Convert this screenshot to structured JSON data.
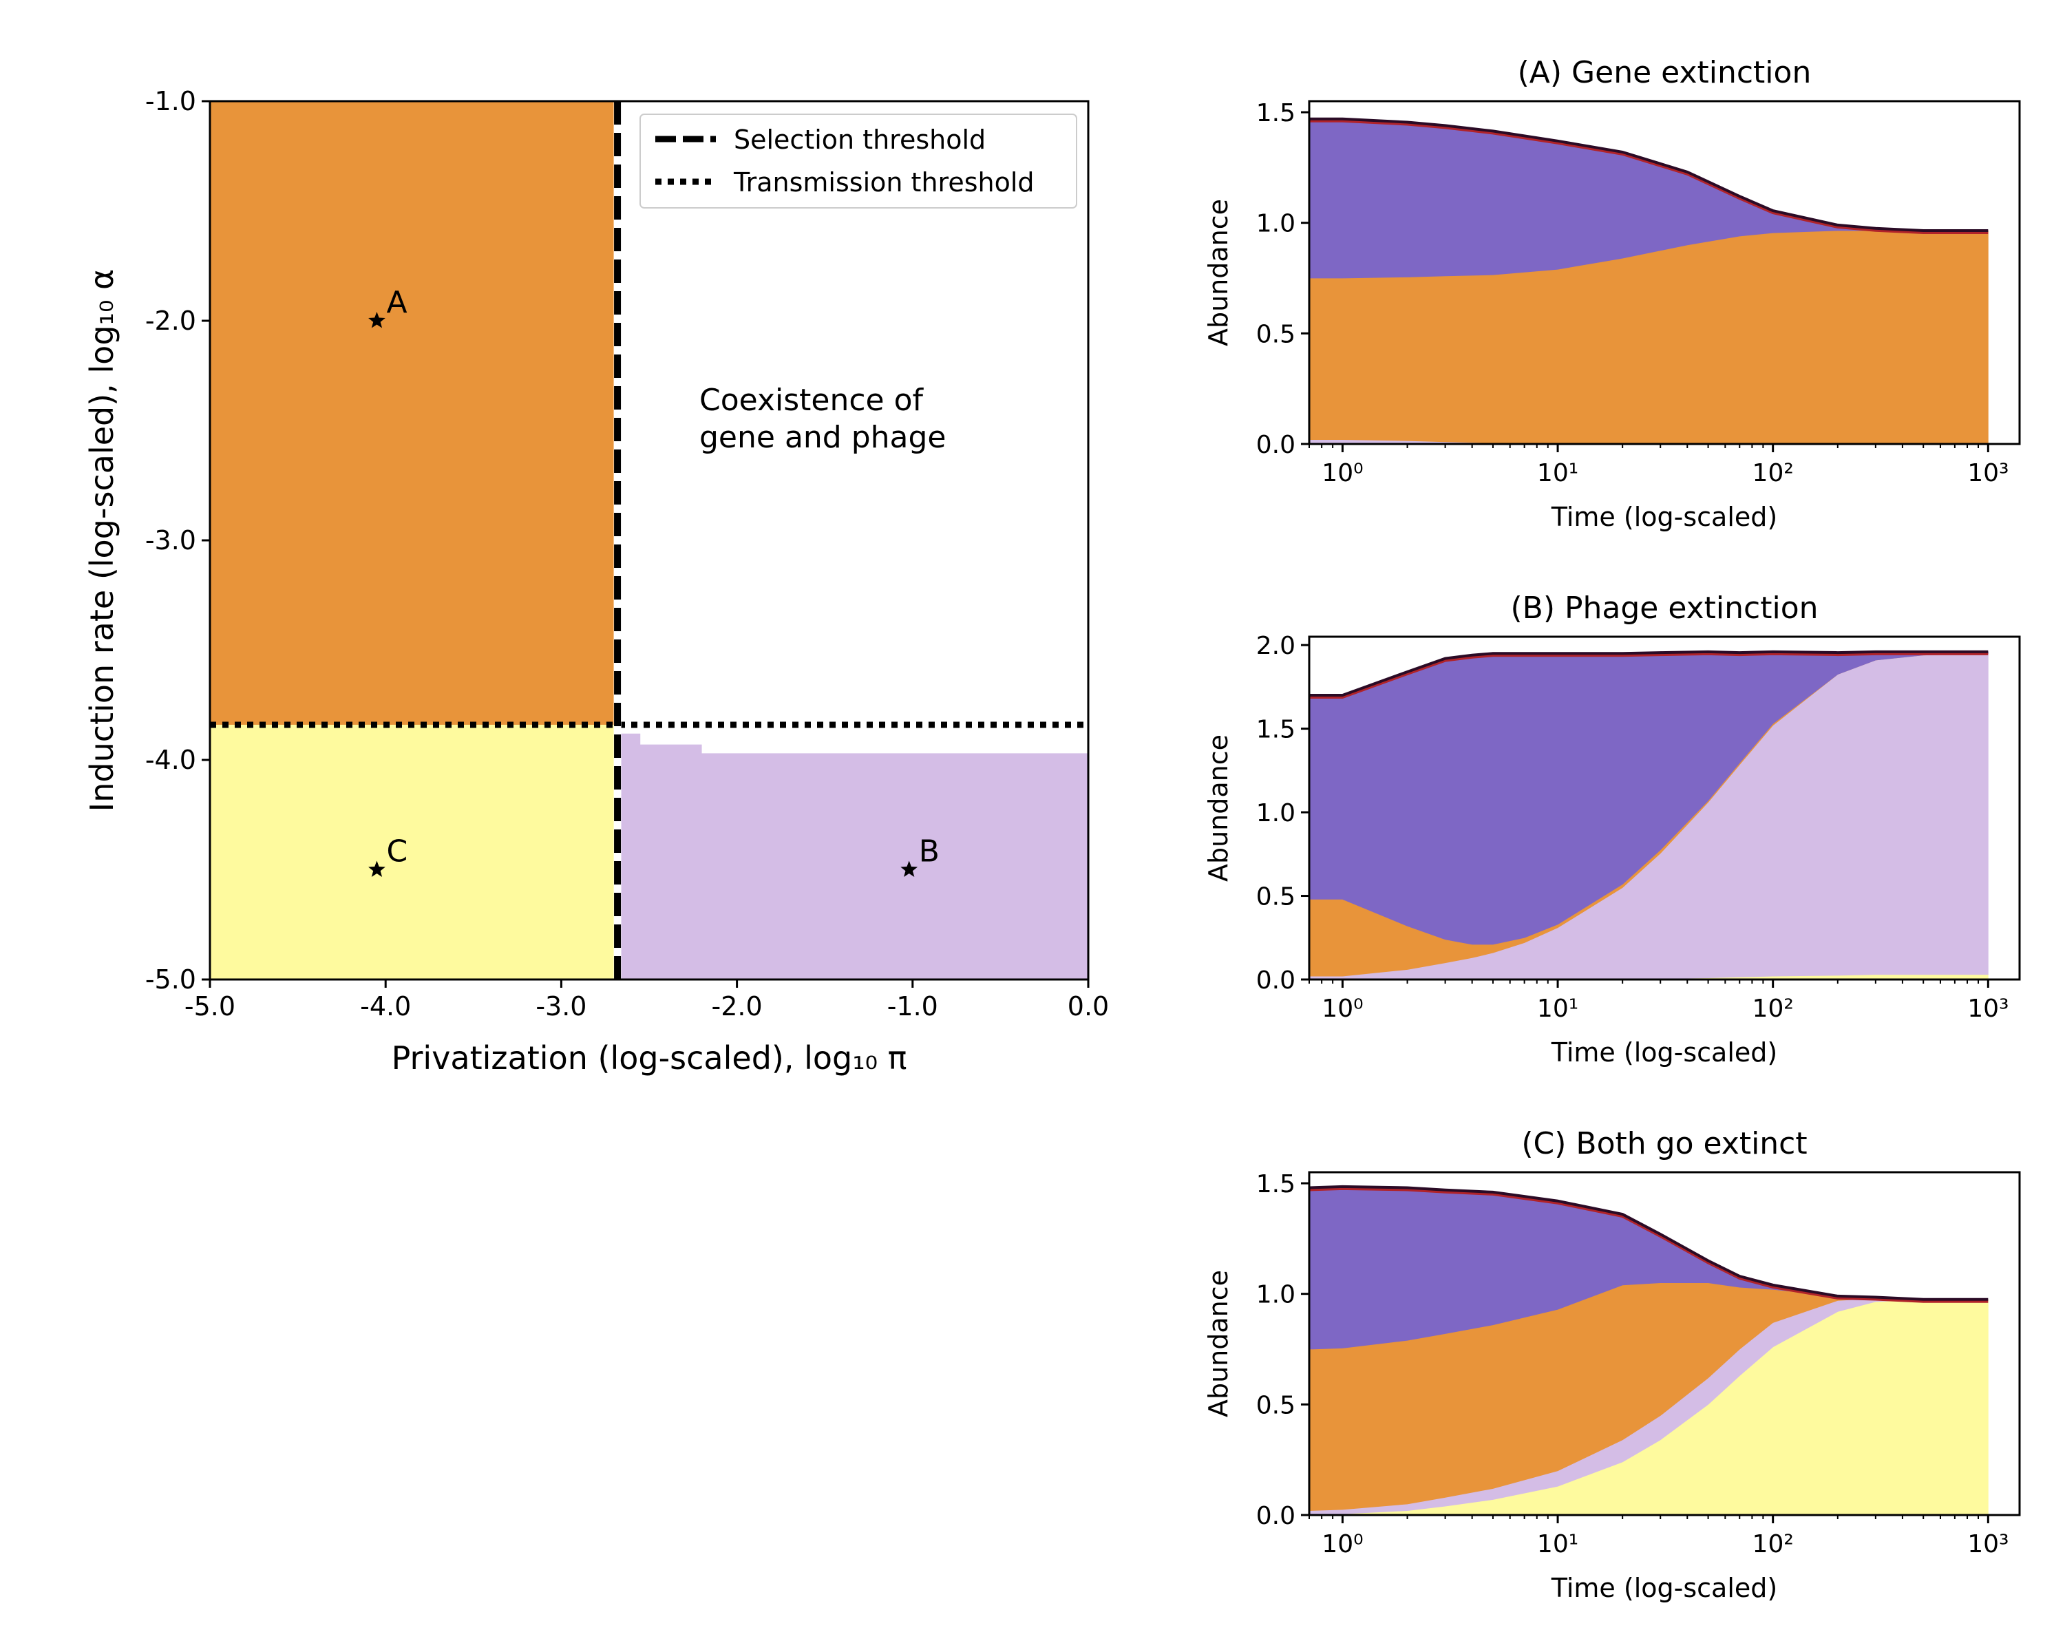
{
  "colors": {
    "orange": "#E8943A",
    "yellow": "#FEFA9E",
    "lavender": "#D4BDE6",
    "purple": "#7E67C5",
    "outline_dark": "#2A0B26",
    "outline_red": "#B0232A"
  },
  "chart_data": [
    {
      "type": "area",
      "id": "phase",
      "title": "",
      "xlabel": "Privatization (log-scaled), log₁₀ π",
      "ylabel": "Induction rate (log-scaled), log₁₀ α",
      "xlim": [
        -5.0,
        0.0
      ],
      "ylim": [
        -5.0,
        -1.0
      ],
      "xticks": [
        -5.0,
        -4.0,
        -3.0,
        -2.0,
        -1.0,
        0.0
      ],
      "xtick_labels": [
        "-5.0",
        "-4.0",
        "-3.0",
        "-2.0",
        "-1.0",
        "0.0"
      ],
      "yticks": [
        -5.0,
        -4.0,
        -3.0,
        -2.0,
        -1.0
      ],
      "ytick_labels": [
        "-5.0",
        "-4.0",
        "-3.0",
        "-2.0",
        "-1.0"
      ],
      "selection_threshold_x": -2.68,
      "transmission_threshold_y": -3.84,
      "regions": [
        {
          "name": "gene extinction",
          "color": "orange",
          "x": [
            -5.0,
            -2.68
          ],
          "y": [
            -3.84,
            -1.0
          ]
        },
        {
          "name": "both extinct",
          "color": "yellow",
          "x": [
            -5.0,
            -2.68
          ],
          "y": [
            -5.0,
            -3.84
          ]
        }
      ],
      "phage_extinction_boundary": {
        "x": [
          -2.68,
          -2.55,
          -2.55,
          -2.2,
          -2.2,
          0.0
        ],
        "y": [
          -3.88,
          -3.88,
          -3.93,
          -3.93,
          -3.97,
          -3.97
        ]
      },
      "points": [
        {
          "label": "A",
          "x": -4.05,
          "y": -2.0
        },
        {
          "label": "B",
          "x": -1.02,
          "y": -4.5
        },
        {
          "label": "C",
          "x": -4.05,
          "y": -4.5
        }
      ],
      "region_annotation": [
        "Coexistence of",
        "gene and phage"
      ],
      "legend": {
        "position": "top-right",
        "entries": [
          {
            "label": "Selection threshold",
            "style": "dashed"
          },
          {
            "label": "Transmission threshold",
            "style": "dotted"
          }
        ]
      }
    },
    {
      "type": "area",
      "id": "A",
      "title": "(A) Gene extinction",
      "xlabel": "Time (log-scaled)",
      "ylabel": "Abundance",
      "xscale": "log",
      "xlim": [
        0.7,
        1400
      ],
      "ylim": [
        0.0,
        1.55
      ],
      "yticks": [
        0.0,
        0.5,
        1.0,
        1.5
      ],
      "ytick_labels": [
        "0.0",
        "0.5",
        "1.0",
        "1.5"
      ],
      "xtick_labels": [
        "10⁰",
        "10¹",
        "10²",
        "10³"
      ],
      "x": [
        0.7,
        1,
        2,
        3,
        5,
        10,
        20,
        40,
        70,
        100,
        200,
        300,
        500,
        1000
      ],
      "series": [
        {
          "color": "yellow",
          "values": [
            0.0,
            0.0,
            0.0,
            0.0,
            0.0,
            0.0,
            0.0,
            0.0,
            0.0,
            0.0,
            0.0,
            0.0,
            0.0,
            0.0
          ]
        },
        {
          "color": "lavender",
          "values": [
            0.02,
            0.02,
            0.015,
            0.01,
            0.005,
            0.0,
            0.0,
            0.0,
            0.0,
            0.0,
            0.0,
            0.0,
            0.0,
            0.0
          ]
        },
        {
          "color": "orange",
          "values": [
            0.73,
            0.73,
            0.74,
            0.75,
            0.76,
            0.79,
            0.84,
            0.9,
            0.94,
            0.955,
            0.965,
            0.965,
            0.965,
            0.965
          ]
        },
        {
          "color": "purple",
          "values": [
            0.72,
            0.72,
            0.7,
            0.68,
            0.65,
            0.58,
            0.48,
            0.33,
            0.18,
            0.1,
            0.025,
            0.01,
            0.0,
            0.0
          ]
        }
      ]
    },
    {
      "type": "area",
      "id": "B",
      "title": "(B) Phage extinction",
      "xlabel": "Time (log-scaled)",
      "ylabel": "Abundance",
      "xscale": "log",
      "xlim": [
        0.7,
        1400
      ],
      "ylim": [
        0.0,
        2.05
      ],
      "yticks": [
        0.0,
        0.5,
        1.0,
        1.5,
        2.0
      ],
      "ytick_labels": [
        "0.0",
        "0.5",
        "1.0",
        "1.5",
        "2.0"
      ],
      "xtick_labels": [
        "10⁰",
        "10¹",
        "10²",
        "10³"
      ],
      "x": [
        0.7,
        1,
        2,
        3,
        4,
        5,
        7,
        10,
        20,
        30,
        50,
        70,
        100,
        200,
        300,
        500,
        1000
      ],
      "series": [
        {
          "color": "yellow",
          "values": [
            0.0,
            0.0,
            0.0,
            0.0,
            0.0,
            0.0,
            0.0,
            0.0,
            0.0,
            0.005,
            0.01,
            0.015,
            0.02,
            0.025,
            0.03,
            0.03,
            0.03
          ]
        },
        {
          "color": "lavender",
          "values": [
            0.02,
            0.02,
            0.06,
            0.1,
            0.13,
            0.16,
            0.22,
            0.31,
            0.55,
            0.75,
            1.05,
            1.27,
            1.5,
            1.8,
            1.88,
            1.91,
            1.92
          ]
        },
        {
          "color": "orange",
          "values": [
            0.46,
            0.46,
            0.26,
            0.14,
            0.08,
            0.05,
            0.03,
            0.02,
            0.02,
            0.02,
            0.01,
            0.01,
            0.01,
            0.0,
            0.0,
            0.0,
            0.0
          ]
        },
        {
          "color": "purple",
          "values": [
            1.22,
            1.22,
            1.52,
            1.68,
            1.73,
            1.74,
            1.7,
            1.62,
            1.38,
            1.18,
            0.89,
            0.66,
            0.43,
            0.13,
            0.05,
            0.02,
            0.01
          ]
        }
      ]
    },
    {
      "type": "area",
      "id": "C",
      "title": "(C) Both go extinct",
      "xlabel": "Time (log-scaled)",
      "ylabel": "Abundance",
      "xscale": "log",
      "xlim": [
        0.7,
        1400
      ],
      "ylim": [
        0.0,
        1.55
      ],
      "yticks": [
        0.0,
        0.5,
        1.0,
        1.5
      ],
      "ytick_labels": [
        "0.0",
        "0.5",
        "1.0",
        "1.5"
      ],
      "xtick_labels": [
        "10⁰",
        "10¹",
        "10²",
        "10³"
      ],
      "x": [
        0.7,
        1,
        2,
        3,
        5,
        10,
        20,
        30,
        50,
        70,
        100,
        200,
        300,
        500,
        1000
      ],
      "series": [
        {
          "color": "yellow",
          "values": [
            0.0,
            0.005,
            0.02,
            0.04,
            0.07,
            0.13,
            0.24,
            0.34,
            0.5,
            0.63,
            0.76,
            0.92,
            0.965,
            0.975,
            0.975
          ]
        },
        {
          "color": "lavender",
          "values": [
            0.02,
            0.02,
            0.03,
            0.04,
            0.05,
            0.07,
            0.1,
            0.11,
            0.12,
            0.12,
            0.11,
            0.05,
            0.015,
            0.0,
            0.0
          ]
        },
        {
          "color": "orange",
          "values": [
            0.73,
            0.73,
            0.74,
            0.74,
            0.74,
            0.73,
            0.7,
            0.6,
            0.43,
            0.28,
            0.15,
            0.02,
            0.005,
            0.0,
            0.0
          ]
        },
        {
          "color": "purple",
          "values": [
            0.73,
            0.73,
            0.69,
            0.65,
            0.6,
            0.49,
            0.32,
            0.22,
            0.1,
            0.05,
            0.02,
            0.0,
            0.0,
            0.0,
            0.0
          ]
        }
      ]
    }
  ]
}
